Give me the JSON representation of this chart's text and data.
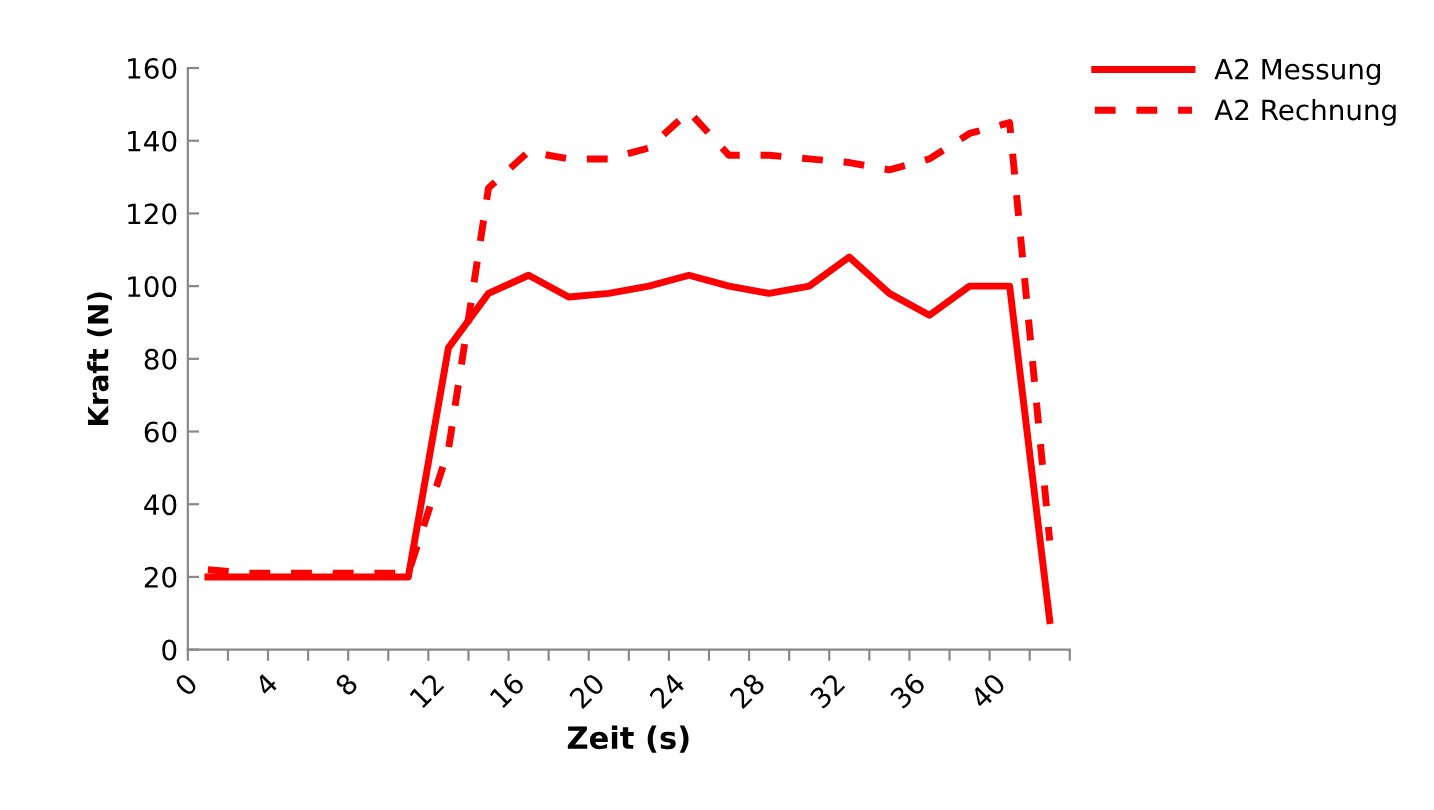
{
  "chart_data": {
    "type": "line",
    "xlabel": "Zeit (s)",
    "ylabel": "Kraft (N)",
    "x": [
      1,
      3,
      5,
      7,
      9,
      11,
      13,
      15,
      17,
      19,
      21,
      23,
      25,
      27,
      29,
      31,
      33,
      35,
      37,
      39,
      41,
      43
    ],
    "series": [
      {
        "name": "A2 Messung",
        "color": "#ff0000",
        "line_style": "solid",
        "values": [
          20,
          20,
          20,
          20,
          20,
          20,
          83,
          98,
          103,
          97,
          98,
          100,
          103,
          100,
          98,
          100,
          108,
          98,
          92,
          100,
          100,
          8
        ]
      },
      {
        "name": "A2 Rechnung",
        "color": "#ff0000",
        "line_style": "dashed",
        "values": [
          22,
          21,
          21,
          21,
          21,
          21,
          55,
          127,
          137,
          135,
          135,
          138,
          148,
          136,
          136,
          135,
          134,
          132,
          135,
          142,
          145,
          30
        ]
      }
    ],
    "xlim": [
      0,
      44
    ],
    "xticks": [
      0,
      {
        "value": 2,
        "label": null
      },
      4,
      {
        "value": 6,
        "label": null
      },
      8,
      {
        "value": 10,
        "label": null
      },
      12,
      {
        "value": 14,
        "label": null
      },
      16,
      {
        "value": 18,
        "label": null
      },
      20,
      {
        "value": 22,
        "label": null
      },
      24,
      {
        "value": 26,
        "label": null
      },
      28,
      {
        "value": 30,
        "label": null
      },
      32,
      {
        "value": 34,
        "label": null
      },
      36,
      {
        "value": 38,
        "label": null
      },
      40,
      {
        "value": 42,
        "label": null
      },
      {
        "value": 44,
        "label": null
      }
    ],
    "ylim": [
      0,
      160
    ],
    "yticks": [
      0,
      20,
      40,
      60,
      80,
      100,
      120,
      140,
      160
    ],
    "grid": false,
    "legend": "top right",
    "marker": "none"
  }
}
